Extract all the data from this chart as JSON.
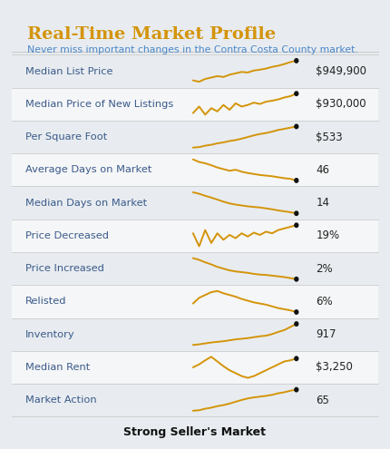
{
  "title": "Real-Time Market Profile",
  "subtitle": "Never miss important changes in the Contra Costa County market.",
  "footer": "Strong Seller's Market",
  "bg_color": "#e8ecf0",
  "card_color": "#ffffff",
  "title_color": "#d4940a",
  "subtitle_color": "#4a86c8",
  "row_label_color": "#3a5a8a",
  "value_color": "#222222",
  "footer_color": "#111111",
  "line_color": "#d4940a",
  "dot_color": "#111111",
  "separator_color": "#cccccc",
  "alt_row_color": "#f5f6f7",
  "rows": [
    {
      "label": "Median List Price",
      "value": "$949,900",
      "trend": [
        0.3,
        0.25,
        0.35,
        0.4,
        0.45,
        0.42,
        0.5,
        0.55,
        0.6,
        0.58,
        0.65,
        0.68,
        0.72,
        0.78,
        0.82,
        0.88,
        0.95,
        1.0
      ]
    },
    {
      "label": "Median Price of New Listings",
      "value": "$930,000",
      "trend": [
        0.4,
        0.6,
        0.35,
        0.55,
        0.45,
        0.65,
        0.5,
        0.7,
        0.6,
        0.65,
        0.72,
        0.68,
        0.75,
        0.78,
        0.82,
        0.88,
        0.92,
        1.0
      ]
    },
    {
      "label": "Per Square Foot",
      "value": "$533",
      "trend": [
        0.1,
        0.12,
        0.18,
        0.22,
        0.28,
        0.32,
        0.38,
        0.42,
        0.48,
        0.55,
        0.62,
        0.68,
        0.72,
        0.78,
        0.85,
        0.9,
        0.95,
        1.0
      ]
    },
    {
      "label": "Average Days on Market",
      "value": "46",
      "trend": [
        1.0,
        0.92,
        0.88,
        0.82,
        0.75,
        0.7,
        0.65,
        0.68,
        0.62,
        0.58,
        0.55,
        0.52,
        0.5,
        0.48,
        0.45,
        0.42,
        0.4,
        0.35
      ]
    },
    {
      "label": "Median Days on Market",
      "value": "14",
      "trend": [
        1.0,
        0.95,
        0.88,
        0.82,
        0.75,
        0.68,
        0.62,
        0.58,
        0.55,
        0.52,
        0.5,
        0.48,
        0.45,
        0.42,
        0.38,
        0.35,
        0.32,
        0.28
      ]
    },
    {
      "label": "Price Decreased",
      "value": "19%",
      "trend": [
        0.7,
        0.3,
        0.8,
        0.4,
        0.7,
        0.5,
        0.65,
        0.55,
        0.7,
        0.6,
        0.72,
        0.65,
        0.75,
        0.7,
        0.8,
        0.85,
        0.9,
        0.95
      ]
    },
    {
      "label": "Price Increased",
      "value": "2%",
      "trend": [
        0.9,
        0.85,
        0.78,
        0.72,
        0.65,
        0.6,
        0.55,
        0.52,
        0.5,
        0.48,
        0.45,
        0.43,
        0.42,
        0.4,
        0.38,
        0.36,
        0.33,
        0.3
      ]
    },
    {
      "label": "Relisted",
      "value": "6%",
      "trend": [
        0.5,
        0.6,
        0.65,
        0.7,
        0.72,
        0.68,
        0.65,
        0.62,
        0.58,
        0.55,
        0.52,
        0.5,
        0.48,
        0.45,
        0.42,
        0.4,
        0.38,
        0.35
      ]
    },
    {
      "label": "Inventory",
      "value": "917",
      "trend": [
        0.2,
        0.22,
        0.25,
        0.28,
        0.3,
        0.32,
        0.35,
        0.38,
        0.4,
        0.42,
        0.45,
        0.48,
        0.5,
        0.55,
        0.62,
        0.68,
        0.78,
        0.88
      ]
    },
    {
      "label": "Median Rent",
      "value": "$3,250",
      "trend": [
        0.6,
        0.65,
        0.72,
        0.78,
        0.7,
        0.62,
        0.55,
        0.5,
        0.45,
        0.42,
        0.45,
        0.5,
        0.55,
        0.6,
        0.65,
        0.7,
        0.72,
        0.75
      ]
    },
    {
      "label": "Market Action",
      "value": "65",
      "trend": [
        0.1,
        0.12,
        0.18,
        0.22,
        0.28,
        0.32,
        0.38,
        0.45,
        0.52,
        0.58,
        0.62,
        0.65,
        0.68,
        0.72,
        0.78,
        0.82,
        0.88,
        0.92
      ]
    }
  ]
}
